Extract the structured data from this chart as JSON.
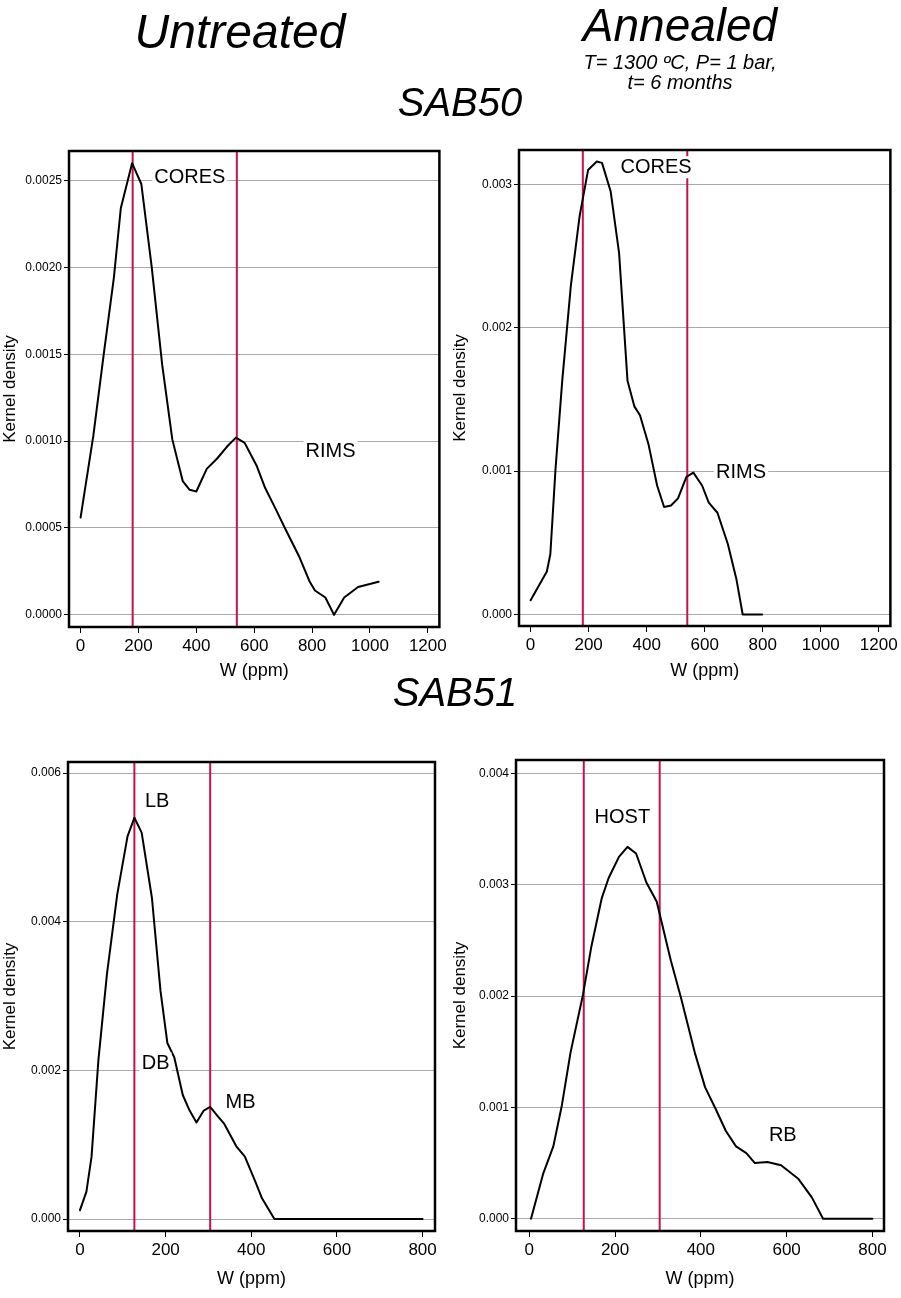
{
  "chart_data": [
    {
      "type": "line",
      "title": "Untreated",
      "subtitle": "SAB50",
      "xlabel": "W (ppm)",
      "ylabel": "Kernel density",
      "grid": "y",
      "legend": false,
      "marker": "none",
      "line_style": "solid",
      "xlim": [
        -40,
        1240
      ],
      "xticks": [
        0,
        200,
        400,
        600,
        800,
        1000,
        1200
      ],
      "ylim": [
        -7e-05,
        0.00267
      ],
      "yticks": [
        {
          "value": 0,
          "label": "0.0000"
        },
        {
          "value": 0.0005,
          "label": "0.0005"
        },
        {
          "value": 0.001,
          "label": "0.0010"
        },
        {
          "value": 0.0015,
          "label": "0.0015"
        },
        {
          "value": 0.002,
          "label": "0.0020"
        },
        {
          "value": 0.0025,
          "label": "0.0025"
        }
      ],
      "series": [
        {
          "color": "#000000",
          "x": [
            0,
            44,
            80,
            115,
            139,
            178,
            210,
            246,
            282,
            317,
            353,
            377,
            400,
            436,
            472,
            507,
            537,
            567,
            608,
            638,
            674,
            709,
            757,
            792,
            810,
            846,
            876,
            911,
            959,
            1030
          ],
          "values": [
            0.00056,
            0.00103,
            0.0015,
            0.00194,
            0.00234,
            0.0026,
            0.00248,
            0.002,
            0.00144,
            0.00101,
            0.00077,
            0.00072,
            0.00071,
            0.00084,
            0.0009,
            0.00097,
            0.00102,
            0.00099,
            0.00086,
            0.00073,
            0.00061,
            0.00049,
            0.00033,
            0.00019,
            0.00014,
            0.0001,
            0,
            0.0001,
            0.00016,
            0.00019
          ]
        }
      ],
      "ref_lines": [
        {
          "axis": "x",
          "value": 180,
          "color": "#c8114a"
        },
        {
          "axis": "x",
          "value": 540,
          "color": "#c8114a"
        }
      ],
      "annotations": [
        "CORES",
        "RIMS"
      ]
    },
    {
      "type": "line",
      "title": "Annealed",
      "subtitle": "T= 1300 ºC, P= 1 bar, t= 6 months",
      "xlabel": "W (ppm)",
      "ylabel": "Kernel density",
      "grid": "y",
      "legend": false,
      "marker": "none",
      "line_style": "solid",
      "xlim": [
        -40,
        1240
      ],
      "xticks": [
        0,
        200,
        400,
        600,
        800,
        1000,
        1200
      ],
      "ylim": [
        -8e-05,
        0.00324
      ],
      "yticks": [
        {
          "value": 0,
          "label": "0.000"
        },
        {
          "value": 0.001,
          "label": "0.001"
        },
        {
          "value": 0.002,
          "label": "0.002"
        },
        {
          "value": 0.003,
          "label": "0.003"
        }
      ],
      "series": [
        {
          "color": "#000000",
          "x": [
            0,
            56,
            68,
            86,
            109,
            139,
            169,
            198,
            228,
            246,
            276,
            305,
            334,
            358,
            377,
            406,
            436,
            460,
            484,
            508,
            537,
            561,
            591,
            614,
            644,
            680,
            709,
            731,
            798
          ],
          "values": [
            0.0001,
            0.0003,
            0.00042,
            0.00102,
            0.00163,
            0.0023,
            0.00278,
            0.0031,
            0.00316,
            0.00315,
            0.00295,
            0.00252,
            0.00163,
            0.00145,
            0.00139,
            0.00119,
            0.0009,
            0.00075,
            0.00076,
            0.00081,
            0.00096,
            0.00099,
            0.0009,
            0.00078,
            0.00071,
            0.00049,
            0.00025,
            0,
            0
          ]
        }
      ],
      "ref_lines": [
        {
          "axis": "x",
          "value": 180,
          "color": "#c8114a"
        },
        {
          "axis": "x",
          "value": 540,
          "color": "#c8114a"
        }
      ],
      "annotations": [
        "CORES",
        "RIMS"
      ]
    },
    {
      "type": "line",
      "title": "SAB51",
      "xlabel": "W (ppm)",
      "ylabel": "Kernel density",
      "grid": "y",
      "legend": false,
      "marker": "none",
      "line_style": "solid",
      "xlim": [
        -28,
        829
      ],
      "xticks": [
        0,
        200,
        400,
        600,
        800
      ],
      "ylim": [
        -0.00016,
        0.00615
      ],
      "yticks": [
        {
          "value": 0,
          "label": "0.000"
        },
        {
          "value": 0.002,
          "label": "0.002"
        },
        {
          "value": 0.004,
          "label": "0.004"
        },
        {
          "value": 0.006,
          "label": "0.006"
        }
      ],
      "series": [
        {
          "color": "#000000",
          "x": [
            0,
            15,
            27,
            43,
            63,
            87,
            111,
            127,
            144,
            168,
            188,
            204,
            220,
            240,
            256,
            272,
            289,
            304,
            321,
            337,
            365,
            385,
            409,
            425,
            454,
            800
          ],
          "values": [
            0.00012,
            0.00037,
            0.00084,
            0.00214,
            0.0033,
            0.00437,
            0.00515,
            0.0054,
            0.0052,
            0.00432,
            0.00307,
            0.00237,
            0.00218,
            0.00167,
            0.00146,
            0.0013,
            0.00146,
            0.00151,
            0.00139,
            0.00128,
            0.00098,
            0.00084,
            0.00051,
            0.00028,
            0,
            0
          ]
        }
      ],
      "ref_lines": [
        {
          "axis": "x",
          "value": 127,
          "color": "#c8114a"
        },
        {
          "axis": "x",
          "value": 304,
          "color": "#c8114a"
        }
      ],
      "annotations": [
        "LB",
        "DB",
        "MB"
      ]
    },
    {
      "type": "line",
      "xlabel": "W (ppm)",
      "ylabel": "Kernel density",
      "grid": "y",
      "legend": false,
      "marker": "none",
      "line_style": "solid",
      "xlim": [
        -31,
        827
      ],
      "xticks": [
        0,
        200,
        400,
        600,
        800
      ],
      "ylim": [
        -0.00011,
        0.00412
      ],
      "yticks": [
        {
          "value": 0,
          "label": "0.000"
        },
        {
          "value": 0.001,
          "label": "0.001"
        },
        {
          "value": 0.002,
          "label": "0.002"
        },
        {
          "value": 0.003,
          "label": "0.003"
        },
        {
          "value": 0.004,
          "label": "0.004"
        }
      ],
      "series": [
        {
          "color": "#000000",
          "x": [
            4,
            32,
            56,
            76,
            96,
            125,
            145,
            169,
            185,
            209,
            229,
            249,
            273,
            297,
            330,
            354,
            386,
            410,
            434,
            458,
            482,
            506,
            526,
            555,
            587,
            627,
            659,
            685,
            800
          ],
          "values": [
            0,
            0.0004,
            0.00065,
            0.00102,
            0.00149,
            0.00201,
            0.00245,
            0.00288,
            0.00306,
            0.00325,
            0.00334,
            0.00328,
            0.00302,
            0.00285,
            0.00232,
            0.00198,
            0.00149,
            0.00118,
            0.00099,
            0.00079,
            0.00065,
            0.00059,
            0.0005,
            0.00051,
            0.00048,
            0.00036,
            0.00019,
            0,
            0
          ]
        }
      ],
      "ref_lines": [
        {
          "axis": "x",
          "value": 127,
          "color": "#c8114a"
        },
        {
          "axis": "x",
          "value": 304,
          "color": "#c8114a"
        }
      ],
      "annotations": [
        "HOST",
        "RB"
      ]
    }
  ]
}
